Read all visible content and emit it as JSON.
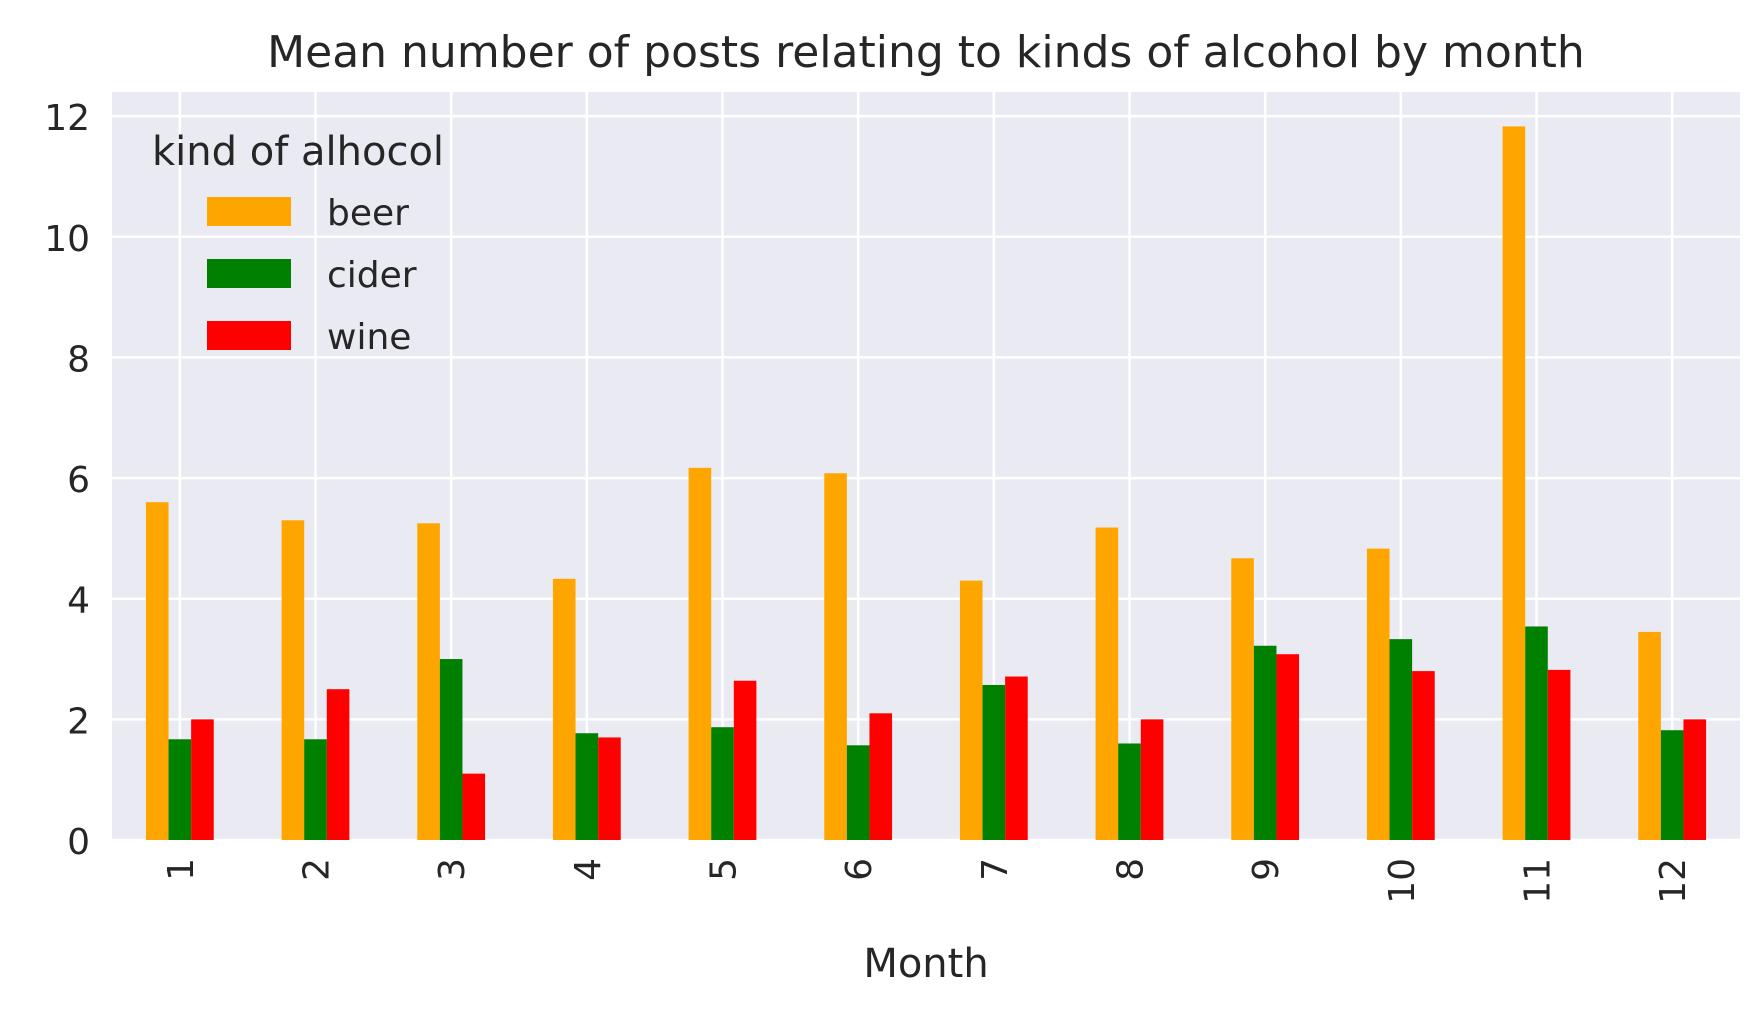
{
  "chart_data": {
    "type": "bar",
    "title": "Mean number of posts relating to kinds of alcohol by month",
    "xlabel": "Month",
    "ylabel": "",
    "categories": [
      "1",
      "2",
      "3",
      "4",
      "5",
      "6",
      "7",
      "8",
      "9",
      "10",
      "11",
      "12"
    ],
    "series": [
      {
        "name": "beer",
        "color": "#ffa500",
        "values": [
          5.6,
          5.3,
          5.25,
          4.33,
          6.17,
          6.08,
          4.3,
          5.18,
          4.67,
          4.83,
          11.83,
          3.45
        ]
      },
      {
        "name": "cider",
        "color": "#008000",
        "values": [
          1.67,
          1.67,
          3.0,
          1.77,
          1.87,
          1.57,
          2.57,
          1.6,
          3.22,
          3.33,
          3.54,
          1.82
        ]
      },
      {
        "name": "wine",
        "color": "#ff0000",
        "values": [
          2.0,
          2.5,
          1.1,
          1.7,
          2.64,
          2.1,
          2.71,
          2.0,
          3.08,
          2.8,
          2.82,
          2.0
        ]
      }
    ],
    "ylim": [
      0,
      12.4
    ],
    "yticks": [
      0,
      2,
      4,
      6,
      8,
      10,
      12
    ],
    "legend": {
      "title": "kind of alhocol",
      "placement": "top-left"
    },
    "grid": true,
    "x_tick_rotation": "vertical",
    "plot_background": "#eaeaf2",
    "grid_color": "#ffffff"
  }
}
